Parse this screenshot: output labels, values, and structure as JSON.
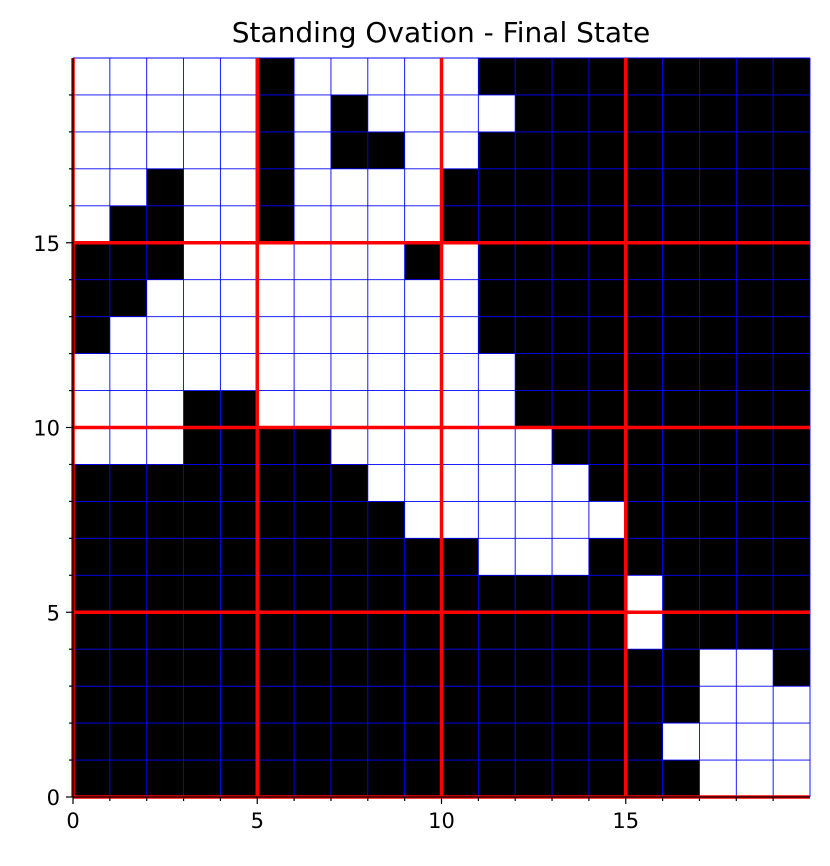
{
  "chart_data": {
    "type": "heatmap",
    "title": "Standing Ovation - Final State",
    "xlabel": "",
    "ylabel": "",
    "xlim": [
      0,
      20
    ],
    "ylim": [
      0,
      20
    ],
    "x_ticks": [
      0,
      5,
      10,
      15
    ],
    "y_ticks": [
      0,
      5,
      10,
      15
    ],
    "x_tick_labels": [
      "0",
      "5",
      "10",
      "15"
    ],
    "y_tick_labels": [
      "0",
      "5",
      "10",
      "15"
    ],
    "minor_tick_step": 1,
    "fine_grid_step": 1,
    "major_grid_step": 5,
    "legend": "none",
    "colors": {
      "standing": "#ffffff",
      "sitting": "#000000",
      "fine_grid": "#0000ff",
      "major_grid": "#ff0000",
      "axes": "#000000"
    },
    "cell_values_note": "1 = white (standing), 0 = black (sitting)",
    "rows_top_to_bottom": [
      "11111011111000000000",
      "11111010111100000000",
      "11111010011000000000",
      "11011011110000000000",
      "10011011110000000000",
      "00011111101000000000",
      "00111111111000000000",
      "01111111111000000000",
      "11111111111100000000",
      "11100111111100000000",
      "11100001111110000000",
      "00000000111111000000",
      "00000000011111100000",
      "00000000000111000000",
      "00000000000000010000",
      "00000000000000010000",
      "00000000000000000110",
      "00000000000000000111",
      "00000000000000001111",
      "00000000000000000111"
    ]
  }
}
